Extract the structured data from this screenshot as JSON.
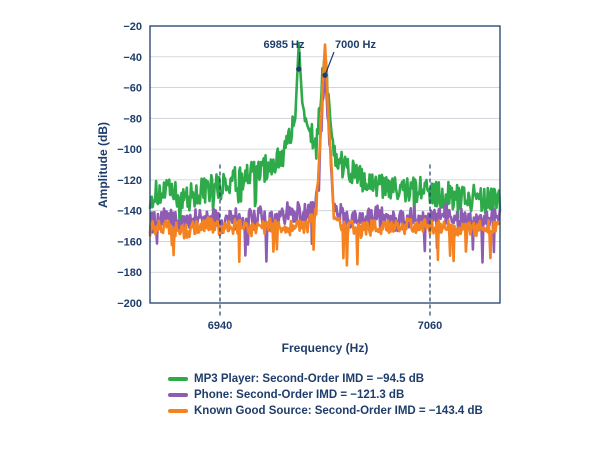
{
  "chart_data": {
    "type": "line",
    "title": "",
    "xlabel": "Frequency (Hz)",
    "ylabel": "Amplitude (dB)",
    "ylim": [
      -200,
      -20
    ],
    "xlim": [
      6900,
      7100
    ],
    "y_ticks": [
      "−20",
      "−40",
      "−60",
      "−80",
      "−100",
      "−120",
      "−140",
      "−160",
      "−180",
      "−200"
    ],
    "x_ticks": [
      "6940",
      "7060"
    ],
    "grid": "horizontal",
    "annotations": [
      "6985 Hz",
      "7000 Hz"
    ],
    "series": [
      {
        "name": "MP3 Player: Second-Order IMD = −94.5 dB",
        "color": "#2eaa4a",
        "x": [
          6900,
          6910,
          6920,
          6930,
          6940,
          6950,
          6960,
          6970,
          6975,
          6980,
          6983,
          6985,
          6987,
          6990,
          6995,
          7000,
          7005,
          7010,
          7020,
          7030,
          7040,
          7050,
          7060,
          7070,
          7080,
          7090,
          7100
        ],
        "y": [
          -130,
          -128,
          -132,
          -127,
          -124,
          -120,
          -116,
          -110,
          -104,
          -95,
          -80,
          -31,
          -70,
          -85,
          -100,
          -36,
          -105,
          -110,
          -120,
          -124,
          -127,
          -126,
          -128,
          -130,
          -131,
          -133,
          -135
        ]
      },
      {
        "name": "Phone: Second-Order IMD = −121.3 dB",
        "color": "#8e5cb3",
        "x": [
          6900,
          6910,
          6920,
          6930,
          6940,
          6950,
          6960,
          6970,
          6980,
          6990,
          6995,
          7000,
          7005,
          7010,
          7020,
          7030,
          7040,
          7050,
          7060,
          7070,
          7080,
          7090,
          7100
        ],
        "y": [
          -148,
          -144,
          -150,
          -142,
          -148,
          -145,
          -143,
          -147,
          -140,
          -142,
          -135,
          -50,
          -138,
          -144,
          -146,
          -143,
          -148,
          -144,
          -147,
          -142,
          -146,
          -148,
          -145
        ]
      },
      {
        "name": "Known Good Source: Second-Order IMD = −143.4 dB",
        "color": "#f58220",
        "x": [
          6900,
          6910,
          6920,
          6930,
          6940,
          6950,
          6960,
          6970,
          6980,
          6990,
          6995,
          7000,
          7005,
          7010,
          7020,
          7030,
          7040,
          7050,
          7060,
          7070,
          7080,
          7090,
          7100
        ],
        "y": [
          -152,
          -150,
          -154,
          -148,
          -152,
          -150,
          -153,
          -149,
          -151,
          -150,
          -140,
          -32,
          -142,
          -150,
          -153,
          -150,
          -152,
          -149,
          -151,
          -150,
          -153,
          -151,
          -152
        ]
      }
    ]
  },
  "legend": {
    "mp3": "MP3 Player: Second-Order IMD = −94.5 dB",
    "phone": "Phone: Second-Order IMD = −121.3 dB",
    "known": "Known Good Source: Second-Order IMD = −143.4 dB"
  }
}
